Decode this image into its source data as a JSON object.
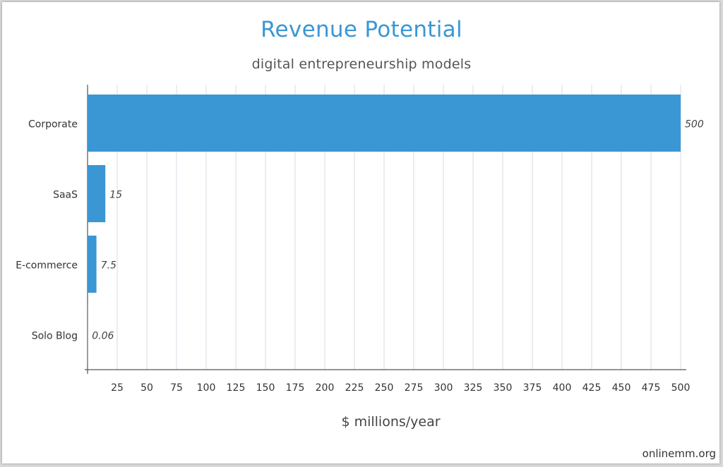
{
  "chart_data": {
    "type": "bar",
    "orientation": "horizontal",
    "title": "Revenue Potential",
    "subtitle": "digital entrepreneurship models",
    "xlabel": "$ millions/year",
    "ylabel": "",
    "categories": [
      "Corporate",
      "SaaS",
      "E-commerce",
      "Solo Blog"
    ],
    "values": [
      500,
      15,
      7.5,
      0.06
    ],
    "value_labels": [
      "500",
      "15",
      "7.5",
      "0.06"
    ],
    "xlim": [
      0,
      500
    ],
    "xticks": [
      25,
      50,
      75,
      100,
      125,
      150,
      175,
      200,
      225,
      250,
      275,
      300,
      325,
      350,
      375,
      400,
      425,
      450,
      475,
      500
    ],
    "grid": "vertical",
    "legend": "none",
    "bar_color": "#3a97d4",
    "grid_color": "#d8dbe6"
  },
  "watermark": "onlinemm.org"
}
